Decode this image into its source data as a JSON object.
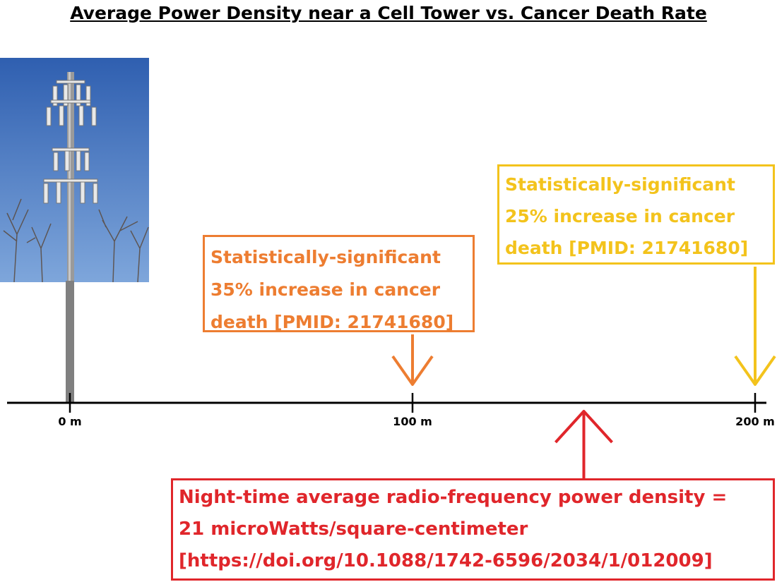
{
  "chart_data": {
    "type": "diagram",
    "title": "Average Power Density near a Cell Tower vs. Cancer Death Rate",
    "axis": {
      "unit": "m",
      "min": 0,
      "max": 200,
      "ticks": [
        {
          "value": 0,
          "label": "0 m"
        },
        {
          "value": 100,
          "label": "100 m"
        },
        {
          "value": 200,
          "label": "200 m"
        }
      ]
    },
    "annotations": [
      {
        "id": "orange",
        "at": 100,
        "direction": "down",
        "color": "#ed7d31",
        "lines": [
          "Statistically-significant",
          "35% increase in cancer",
          "death [PMID: 21741680]"
        ]
      },
      {
        "id": "yellow",
        "at": 200,
        "direction": "down",
        "color": "#f3c31c",
        "lines": [
          "Statistically-significant",
          "25% increase in cancer",
          "death [PMID: 21741680]"
        ]
      },
      {
        "id": "red",
        "at": 150,
        "direction": "up",
        "color": "#e0262b",
        "lines": [
          "Night-time average radio-frequency power density =",
          "21 microWatts/square-centimeter",
          "[https://doi.org/10.1088/1742-6596/2034/1/012009]"
        ]
      }
    ]
  },
  "icons": {
    "tower": "cell-tower-photo-icon"
  },
  "colors": {
    "axis": "#000000",
    "tower_pole": "#808080",
    "sky": "#4f7fc4"
  }
}
